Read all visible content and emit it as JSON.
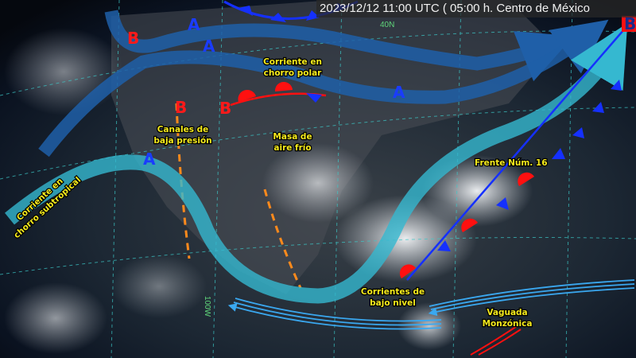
{
  "title": "2023/12/12 11:00 UTC ( 05:00 h. Centro de México",
  "grid_labels": {
    "lat": "40N",
    "lon": "100W"
  },
  "labels": {
    "polar_jet": [
      "Corriente en",
      "chorro polar"
    ],
    "subtropical_jet": [
      "Corriente en",
      "chorro subtropical"
    ],
    "low_pressure_channels": [
      "Canales de",
      "baja presión"
    ],
    "cold_air_mass": [
      "Masa de",
      "aire frío"
    ],
    "front": "Frente Núm. 16",
    "low_level_currents": [
      "Corrientes de",
      "bajo nivel"
    ],
    "monsoon_trough": [
      "Vaguada",
      "Monzónica"
    ]
  },
  "pressure_centers": {
    "high": "A",
    "low": "B"
  },
  "colors": {
    "polar_jet": "#1f5fa8",
    "subtropical_jet": "#35b8d0",
    "cold_front": "#1530ff",
    "warm_front": "#ff1010",
    "low_level": "#3aa8f0",
    "trough_dashed": "#ff8a1c",
    "label_text": "#f5ea1c",
    "grid": "#3cc8c8"
  }
}
